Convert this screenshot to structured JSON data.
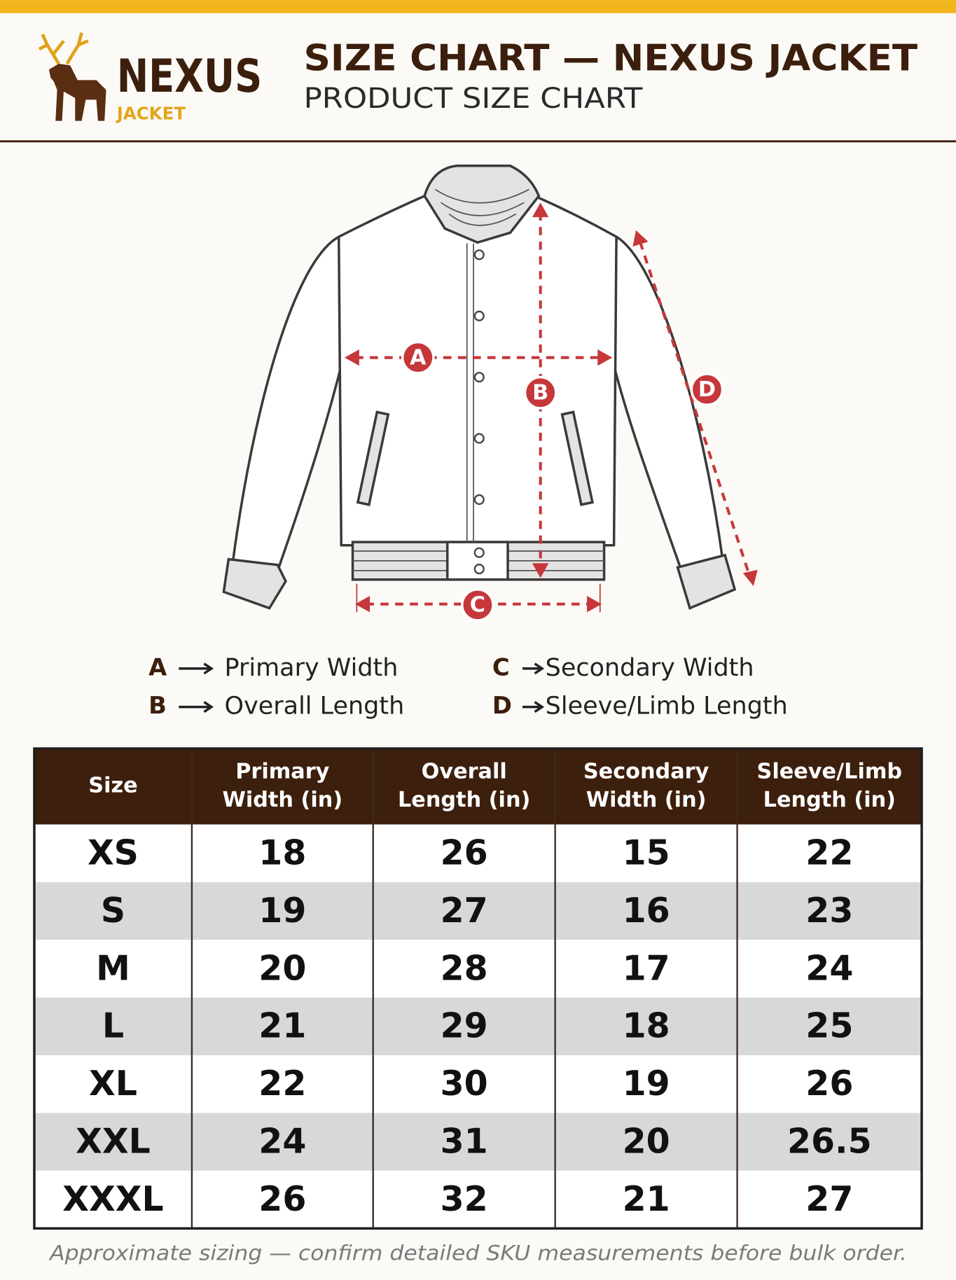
{
  "header": {
    "brand": "NEXUS",
    "brand_sub": "JACKET",
    "title": "SIZE CHART — NEXUS JACKET",
    "subtitle": "PRODUCT SIZE CHART"
  },
  "diagram": {
    "labels": [
      "A",
      "B",
      "C",
      "D"
    ]
  },
  "legend": [
    {
      "key": "A",
      "label": "Primary Width"
    },
    {
      "key": "B",
      "label": "Overall Length"
    },
    {
      "key": "C",
      "label": "Secondary Width"
    },
    {
      "key": "D",
      "label": "Sleeve/Limb Length"
    }
  ],
  "table": {
    "columns": [
      [
        "Size"
      ],
      [
        "Primary",
        "Width (in)"
      ],
      [
        "Overall",
        "Length (in)"
      ],
      [
        "Secondary",
        "Width (in)"
      ],
      [
        "Sleeve/Limb",
        "Length (in)"
      ]
    ],
    "rows": [
      [
        "XS",
        18,
        26,
        15,
        22
      ],
      [
        "S",
        19,
        27,
        16,
        23
      ],
      [
        "M",
        20,
        28,
        17,
        24
      ],
      [
        "L",
        21,
        29,
        18,
        25
      ],
      [
        "XL",
        22,
        30,
        19,
        26
      ],
      [
        "XXL",
        24,
        31,
        20,
        26.5
      ],
      [
        "XXXL",
        26,
        32,
        21,
        27
      ]
    ]
  },
  "footnote": "Approximate sizing — confirm detailed SKU measurements before bulk order."
}
